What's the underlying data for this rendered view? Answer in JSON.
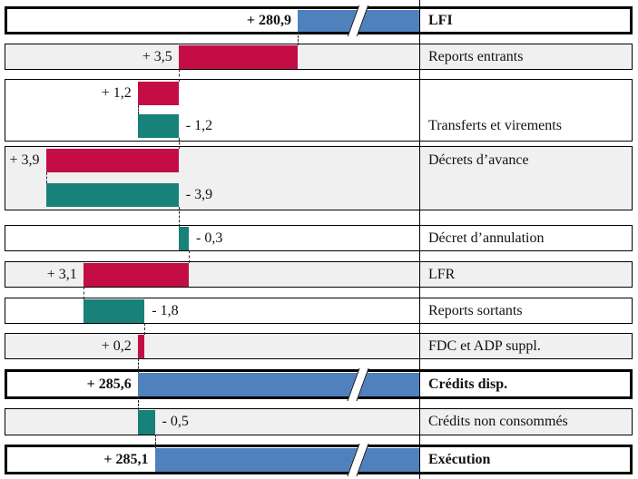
{
  "chart_data": {
    "type": "bar",
    "subtype": "horizontal-waterfall",
    "title": "",
    "legend": "none",
    "grid": "off",
    "value_format": "signed, comma decimal separator",
    "colors": {
      "total_bar": "#4F81BD",
      "increase_bar": "#C40D45",
      "decrease_bar": "#17817A",
      "shaded_row_bg": "#F0F0F0",
      "row_border": "#000000",
      "connector": "#2A2A2A",
      "text": "#111111"
    },
    "categories": [
      "LFI",
      "Reports entrants",
      "Transferts et virements",
      "Décrets d’avance",
      "Décret d’annulation",
      "LFR",
      "Reports sortants",
      "FDC et ADP suppl.",
      "Crédits disp.",
      "Crédits non consommés",
      "Exécution"
    ],
    "values": [
      280.9,
      3.5,
      1.2,
      -1.2,
      3.9,
      -3.9,
      -0.3,
      3.1,
      -1.8,
      0.2,
      285.6,
      -0.5,
      285.1
    ],
    "rows": [
      {
        "label": "LFI",
        "emphasis": true,
        "shaded": false,
        "bars": [
          {
            "kind": "total",
            "value": 280.9,
            "text": "+ 280,9",
            "broken_axis": true
          }
        ]
      },
      {
        "label": "Reports entrants",
        "emphasis": false,
        "shaded": true,
        "bars": [
          {
            "kind": "delta",
            "value": 3.5,
            "text": "+ 3,5"
          }
        ]
      },
      {
        "label": "Transferts et virements",
        "emphasis": false,
        "shaded": false,
        "bars": [
          {
            "kind": "delta",
            "value": 1.2,
            "text": "+ 1,2"
          },
          {
            "kind": "delta",
            "value": -1.2,
            "text": "- 1,2"
          }
        ]
      },
      {
        "label": "Décrets d’avance",
        "emphasis": false,
        "shaded": true,
        "bars": [
          {
            "kind": "delta",
            "value": 3.9,
            "text": "+ 3,9"
          },
          {
            "kind": "delta",
            "value": -3.9,
            "text": "- 3,9"
          }
        ]
      },
      {
        "label": "Décret d’annulation",
        "emphasis": false,
        "shaded": false,
        "bars": [
          {
            "kind": "delta",
            "value": -0.3,
            "text": "- 0,3"
          }
        ]
      },
      {
        "label": "LFR",
        "emphasis": false,
        "shaded": true,
        "bars": [
          {
            "kind": "delta",
            "value": 3.1,
            "text": "+ 3,1"
          }
        ]
      },
      {
        "label": "Reports sortants",
        "emphasis": false,
        "shaded": false,
        "bars": [
          {
            "kind": "delta",
            "value": -1.8,
            "text": "- 1,8"
          }
        ]
      },
      {
        "label": "FDC et ADP suppl.",
        "emphasis": false,
        "shaded": true,
        "bars": [
          {
            "kind": "delta",
            "value": 0.2,
            "text": "+ 0,2"
          }
        ]
      },
      {
        "label": "Crédits disp.",
        "emphasis": true,
        "shaded": false,
        "bars": [
          {
            "kind": "total",
            "value": 285.6,
            "text": "+ 285,6",
            "broken_axis": true
          }
        ]
      },
      {
        "label": "Crédits non consommés",
        "emphasis": false,
        "shaded": true,
        "bars": [
          {
            "kind": "delta",
            "value": -0.5,
            "text": "- 0,5"
          }
        ]
      },
      {
        "label": "Exécution",
        "emphasis": true,
        "shaded": false,
        "bars": [
          {
            "kind": "total",
            "value": 285.1,
            "text": "+ 285,1",
            "broken_axis": true
          }
        ]
      }
    ]
  }
}
